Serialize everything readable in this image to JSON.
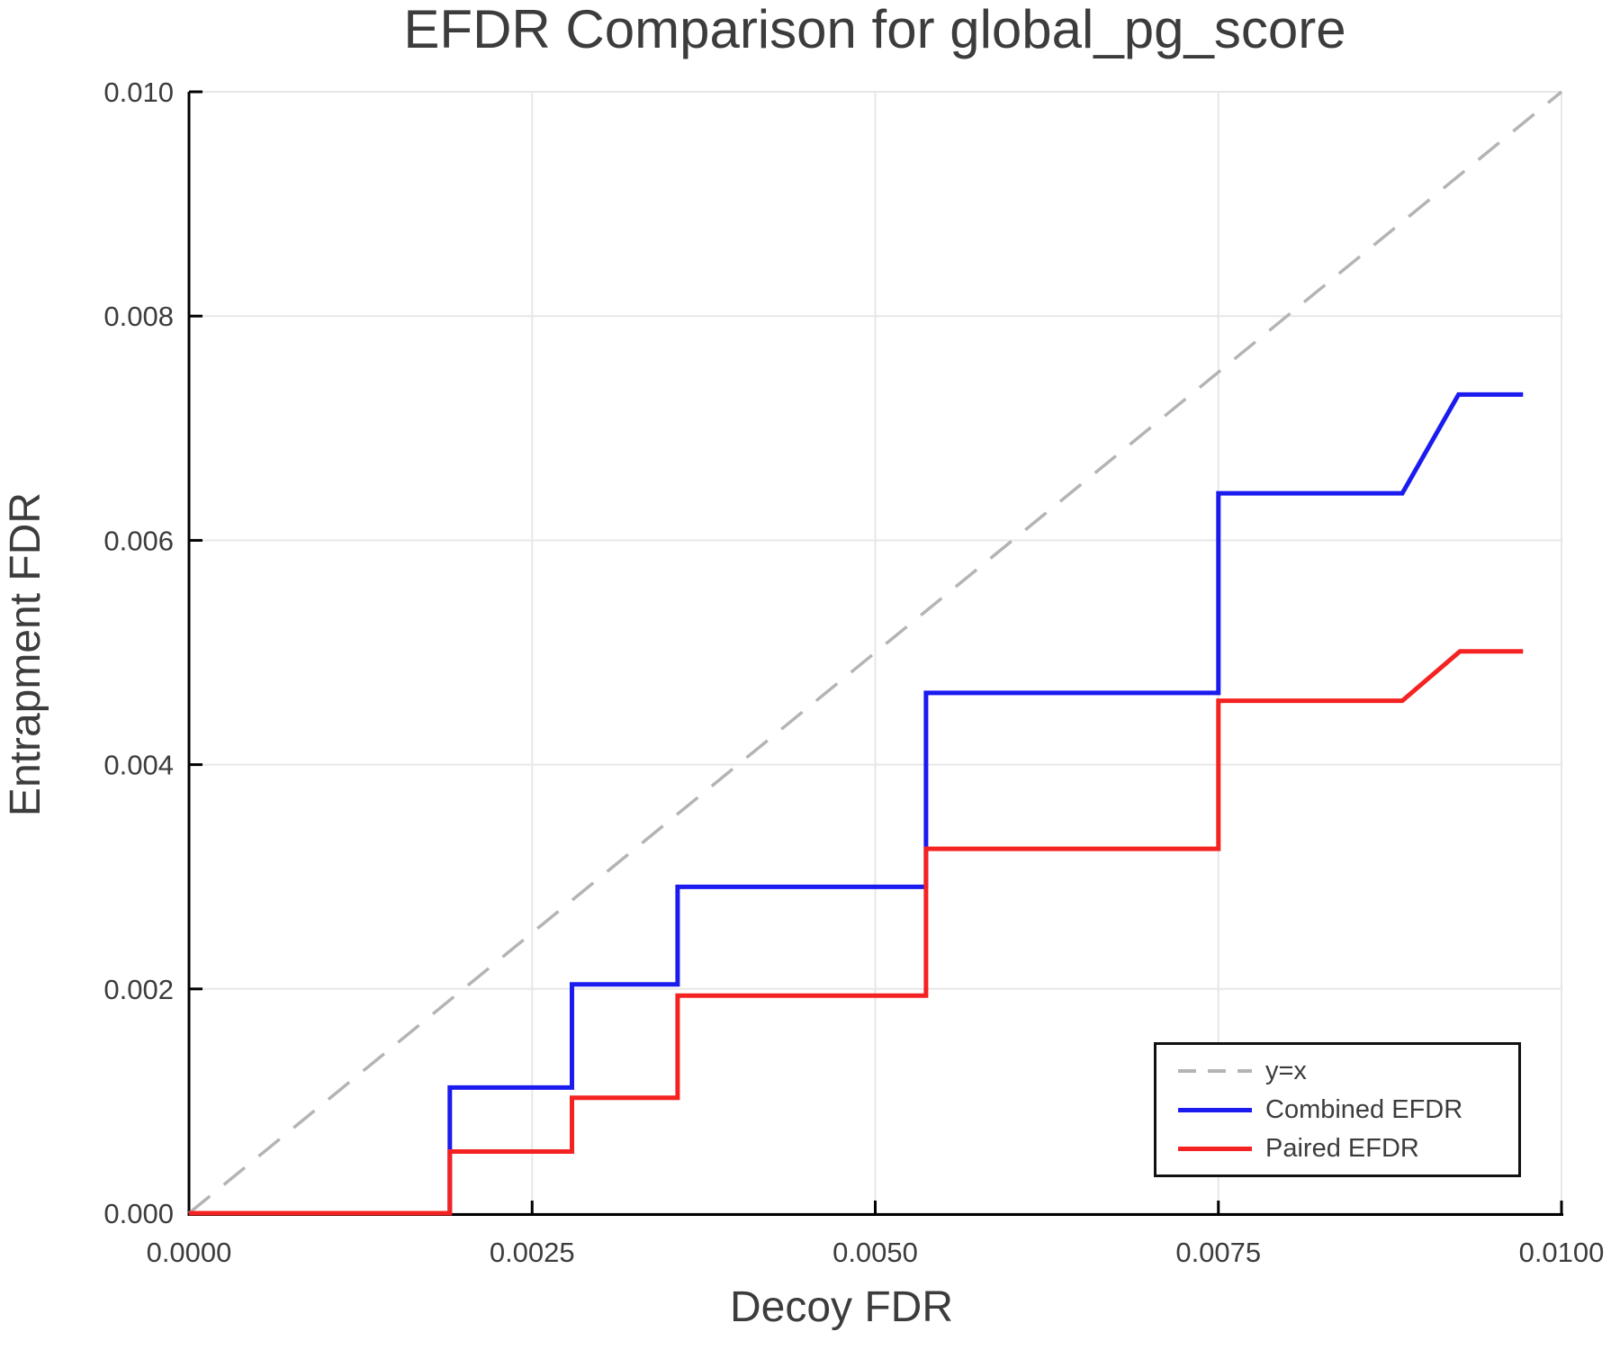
{
  "chart_data": {
    "type": "line",
    "title": "EFDR Comparison for global_pg_score",
    "xlabel": "Decoy FDR",
    "ylabel": "Entrapment FDR",
    "xlim": [
      0.0,
      0.01
    ],
    "ylim": [
      0.0,
      0.01
    ],
    "grid": true,
    "legend_position": "bottom-right",
    "xticks": {
      "values": [
        0.0,
        0.0025,
        0.005,
        0.0075,
        0.01
      ],
      "labels": [
        "0.0000",
        "0.0025",
        "0.0050",
        "0.0075",
        "0.0100"
      ]
    },
    "yticks": {
      "values": [
        0.0,
        0.002,
        0.004,
        0.006,
        0.008,
        0.01
      ],
      "labels": [
        "0.000",
        "0.002",
        "0.004",
        "0.006",
        "0.008",
        "0.010"
      ]
    },
    "style": {
      "grid_color": "#e7e7e7",
      "spine_color": "#000000",
      "text_color": "#3c3c3c",
      "background": "#ffffff"
    },
    "series": [
      {
        "name": "y=x",
        "color": "#b4b4b4",
        "line_style": "dashed",
        "line_width": 3.5,
        "points": [
          [
            0.0,
            0.0
          ],
          [
            0.01,
            0.01
          ]
        ]
      },
      {
        "name": "Combined EFDR",
        "color": "#1b1bf0",
        "line_style": "solid",
        "line_width": 5,
        "points": [
          [
            0.0,
            0.0
          ],
          [
            0.0019,
            0.0
          ],
          [
            0.0019,
            0.00112
          ],
          [
            0.00279,
            0.00112
          ],
          [
            0.00279,
            0.00204
          ],
          [
            0.00356,
            0.00204
          ],
          [
            0.00356,
            0.00291
          ],
          [
            0.00537,
            0.00291
          ],
          [
            0.00537,
            0.00464
          ],
          [
            0.0075,
            0.00464
          ],
          [
            0.0075,
            0.00642
          ],
          [
            0.00884,
            0.00642
          ],
          [
            0.00925,
            0.0073
          ],
          [
            0.00972,
            0.0073
          ]
        ]
      },
      {
        "name": "Paired EFDR",
        "color": "#f52222",
        "line_style": "solid",
        "line_width": 5,
        "points": [
          [
            0.0,
            0.0
          ],
          [
            0.0019,
            0.0
          ],
          [
            0.0019,
            0.00055
          ],
          [
            0.00279,
            0.00055
          ],
          [
            0.00279,
            0.00103
          ],
          [
            0.00356,
            0.00103
          ],
          [
            0.00356,
            0.00194
          ],
          [
            0.00537,
            0.00194
          ],
          [
            0.00537,
            0.00325
          ],
          [
            0.0075,
            0.00325
          ],
          [
            0.0075,
            0.00457
          ],
          [
            0.00884,
            0.00457
          ],
          [
            0.00926,
            0.00501
          ],
          [
            0.00972,
            0.00501
          ]
        ]
      }
    ]
  }
}
